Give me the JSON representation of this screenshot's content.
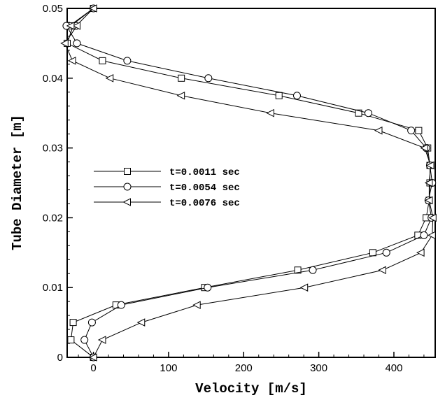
{
  "chart_data": {
    "type": "line",
    "xlabel": "Velocity [m/s]",
    "ylabel": "Tube Diameter [m]",
    "xlim": [
      -35,
      455
    ],
    "ylim": [
      0,
      0.05
    ],
    "xticks": [
      0,
      100,
      200,
      300,
      400
    ],
    "yticks": [
      0,
      0.01,
      0.02,
      0.03,
      0.04,
      0.05
    ],
    "xtick_labels": [
      "0",
      "100",
      "200",
      "300",
      "400"
    ],
    "ytick_labels": [
      "0",
      "0.01",
      "0.02",
      "0.03",
      "0.04",
      "0.05"
    ],
    "grid": false,
    "legend_position": "center-left",
    "series": [
      {
        "name": "t=0.0011 sec",
        "marker": "square",
        "color": "#000000",
        "x": [
          0,
          -30,
          -27,
          30,
          148,
          272,
          372,
          432,
          443,
          447,
          448,
          448,
          445,
          433,
          353,
          247,
          117,
          12,
          -35,
          -27,
          -32,
          0
        ],
        "y": [
          0,
          0.0025,
          0.005,
          0.0075,
          0.01,
          0.0125,
          0.015,
          0.0175,
          0.02,
          0.0225,
          0.025,
          0.0275,
          0.03,
          0.0325,
          0.035,
          0.0375,
          0.04,
          0.0425,
          0.045,
          0.0475,
          0.0475,
          0.05
        ]
      },
      {
        "name": "t=0.0054 sec",
        "marker": "circle",
        "color": "#000000",
        "x": [
          0,
          -12,
          -2,
          37,
          152,
          292,
          390,
          440,
          450,
          446,
          451,
          448,
          443,
          423,
          366,
          271,
          153,
          45,
          -22,
          -36,
          -23,
          0
        ],
        "y": [
          0,
          0.0025,
          0.005,
          0.0075,
          0.01,
          0.0125,
          0.015,
          0.0175,
          0.02,
          0.0225,
          0.025,
          0.0275,
          0.03,
          0.0325,
          0.035,
          0.0375,
          0.04,
          0.0425,
          0.045,
          0.0475,
          0.0475,
          0.05
        ]
      },
      {
        "name": "t=0.0076 sec",
        "marker": "triangle-left",
        "color": "#000000",
        "x": [
          0,
          12,
          64,
          138,
          281,
          385,
          436,
          451,
          452,
          447,
          447,
          449,
          441,
          380,
          236,
          117,
          22,
          -28,
          -38,
          -22,
          -30,
          0
        ],
        "y": [
          0,
          0.0025,
          0.005,
          0.0075,
          0.01,
          0.0125,
          0.015,
          0.0175,
          0.02,
          0.0225,
          0.025,
          0.0275,
          0.03,
          0.0325,
          0.035,
          0.0375,
          0.04,
          0.0425,
          0.045,
          0.0475,
          0.0475,
          0.05
        ]
      }
    ]
  }
}
